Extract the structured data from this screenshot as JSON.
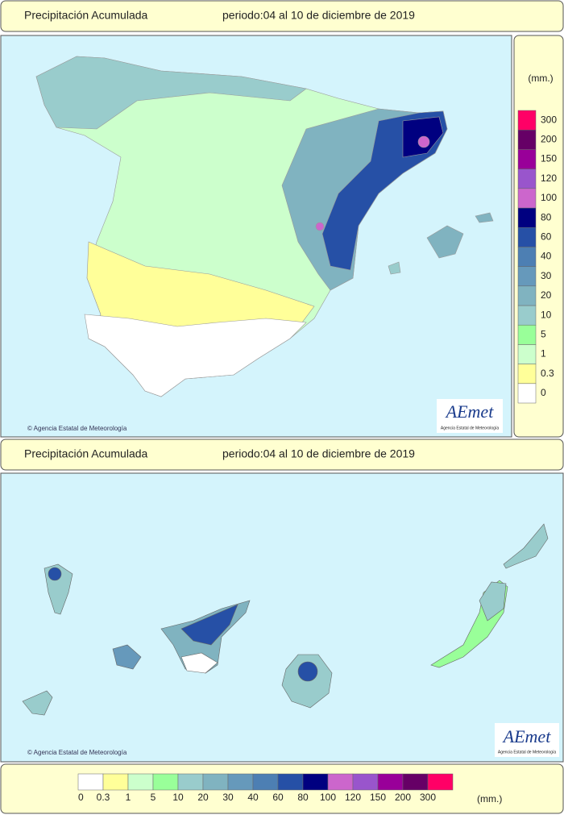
{
  "header": {
    "title": "Precipitación Acumulada",
    "period": "periodo:04 al 10 de diciembre de 2019"
  },
  "legend": {
    "unit": "(mm.)",
    "items": [
      {
        "label": "0",
        "color": "#ffffff"
      },
      {
        "label": "0.3",
        "color": "#ffff99"
      },
      {
        "label": "1",
        "color": "#ccffcc"
      },
      {
        "label": "5",
        "color": "#99ff99"
      },
      {
        "label": "10",
        "color": "#99cccc"
      },
      {
        "label": "20",
        "color": "#80b3c0"
      },
      {
        "label": "30",
        "color": "#6699bb"
      },
      {
        "label": "40",
        "color": "#4d7fb3"
      },
      {
        "label": "60",
        "color": "#2650a6"
      },
      {
        "label": "80",
        "color": "#000080"
      },
      {
        "label": "100",
        "color": "#cc66cc"
      },
      {
        "label": "120",
        "color": "#9955cc"
      },
      {
        "label": "150",
        "color": "#990099"
      },
      {
        "label": "200",
        "color": "#660066"
      },
      {
        "label": "300",
        "color": "#ff0066"
      }
    ]
  },
  "credit": "© Agencia Estatal de Meteorología",
  "logo": {
    "name": "AEmet",
    "subtitle": "Agencia Estatal de Meteorología"
  }
}
